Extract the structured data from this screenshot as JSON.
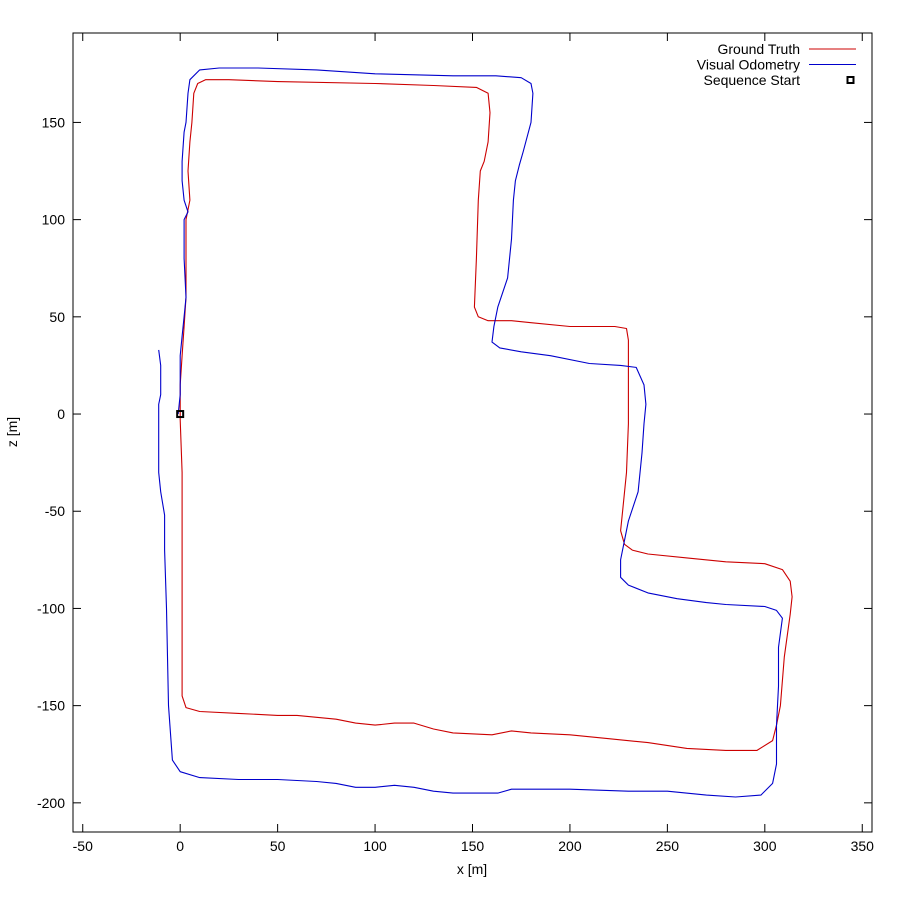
{
  "chart_data": {
    "type": "line",
    "title": "",
    "xlabel": "x [m]",
    "ylabel": "z [m]",
    "xlim": [
      -55,
      355
    ],
    "ylim": [
      -215,
      196
    ],
    "xticks": [
      -50,
      0,
      50,
      100,
      150,
      200,
      250,
      300,
      350
    ],
    "yticks": [
      -200,
      -150,
      -100,
      -50,
      0,
      50,
      100,
      150
    ],
    "grid": false,
    "legend_position": "top-right",
    "series": [
      {
        "name": "Ground Truth",
        "color": "#cc0000",
        "points": [
          [
            0,
            -3
          ],
          [
            1,
            -30
          ],
          [
            1,
            -100
          ],
          [
            1,
            -145
          ],
          [
            3,
            -151
          ],
          [
            10,
            -153
          ],
          [
            30,
            -154
          ],
          [
            50,
            -155
          ],
          [
            60,
            -155
          ],
          [
            80,
            -157
          ],
          [
            90,
            -159
          ],
          [
            100,
            -160
          ],
          [
            110,
            -159
          ],
          [
            120,
            -159
          ],
          [
            130,
            -162
          ],
          [
            140,
            -164
          ],
          [
            160,
            -165
          ],
          [
            170,
            -163
          ],
          [
            180,
            -164
          ],
          [
            200,
            -165
          ],
          [
            220,
            -167
          ],
          [
            240,
            -169
          ],
          [
            260,
            -172
          ],
          [
            280,
            -173
          ],
          [
            296,
            -173
          ],
          [
            304,
            -168
          ],
          [
            306,
            -160
          ],
          [
            308,
            -150
          ],
          [
            310,
            -125
          ],
          [
            313,
            -103
          ],
          [
            314,
            -94
          ],
          [
            313,
            -86
          ],
          [
            309,
            -80
          ],
          [
            300,
            -77
          ],
          [
            280,
            -76
          ],
          [
            260,
            -74
          ],
          [
            240,
            -72
          ],
          [
            232,
            -70
          ],
          [
            228,
            -67
          ],
          [
            226,
            -60
          ],
          [
            227,
            -50
          ],
          [
            229,
            -30
          ],
          [
            230,
            -5
          ],
          [
            230,
            20
          ],
          [
            230,
            38
          ],
          [
            229,
            44
          ],
          [
            223,
            45
          ],
          [
            200,
            45
          ],
          [
            180,
            47
          ],
          [
            170,
            48
          ],
          [
            158,
            48
          ],
          [
            153,
            50
          ],
          [
            151,
            55
          ],
          [
            152,
            80
          ],
          [
            153,
            110
          ],
          [
            154,
            125
          ],
          [
            156,
            130
          ],
          [
            158,
            140
          ],
          [
            159,
            155
          ],
          [
            158,
            165
          ],
          [
            152,
            168
          ],
          [
            130,
            169
          ],
          [
            100,
            170
          ],
          [
            50,
            171
          ],
          [
            25,
            172
          ],
          [
            13,
            172
          ],
          [
            9,
            170
          ],
          [
            7,
            165
          ],
          [
            6,
            150
          ],
          [
            5,
            140
          ],
          [
            4,
            125
          ],
          [
            5,
            110
          ],
          [
            3,
            100
          ],
          [
            3,
            80
          ],
          [
            3,
            60
          ],
          [
            2,
            45
          ],
          [
            1,
            30
          ],
          [
            0,
            15
          ],
          [
            0,
            -3
          ]
        ]
      },
      {
        "name": "Visual Odometry",
        "color": "#0000cc",
        "points": [
          [
            -11,
            33
          ],
          [
            -10,
            25
          ],
          [
            -10,
            10
          ],
          [
            -11,
            5
          ],
          [
            -11,
            -10
          ],
          [
            -11,
            -30
          ],
          [
            -10,
            -40
          ],
          [
            -8,
            -52
          ],
          [
            -8,
            -70
          ],
          [
            -7,
            -100
          ],
          [
            -6,
            -150
          ],
          [
            -4,
            -178
          ],
          [
            0,
            -184
          ],
          [
            10,
            -187
          ],
          [
            30,
            -188
          ],
          [
            50,
            -188
          ],
          [
            70,
            -189
          ],
          [
            80,
            -190
          ],
          [
            90,
            -192
          ],
          [
            100,
            -192
          ],
          [
            110,
            -191
          ],
          [
            120,
            -192
          ],
          [
            130,
            -194
          ],
          [
            140,
            -195
          ],
          [
            163,
            -195
          ],
          [
            170,
            -193
          ],
          [
            180,
            -193
          ],
          [
            200,
            -193
          ],
          [
            230,
            -194
          ],
          [
            250,
            -194
          ],
          [
            270,
            -196
          ],
          [
            285,
            -197
          ],
          [
            298,
            -196
          ],
          [
            304,
            -190
          ],
          [
            306,
            -180
          ],
          [
            306,
            -160
          ],
          [
            307,
            -140
          ],
          [
            307,
            -120
          ],
          [
            309,
            -105
          ],
          [
            306,
            -101
          ],
          [
            300,
            -99
          ],
          [
            280,
            -98
          ],
          [
            270,
            -97
          ],
          [
            255,
            -95
          ],
          [
            240,
            -92
          ],
          [
            230,
            -88
          ],
          [
            226,
            -84
          ],
          [
            226,
            -75
          ],
          [
            228,
            -65
          ],
          [
            230,
            -55
          ],
          [
            235,
            -40
          ],
          [
            237,
            -20
          ],
          [
            238,
            -5
          ],
          [
            239,
            5
          ],
          [
            238,
            15
          ],
          [
            234,
            24
          ],
          [
            226,
            25
          ],
          [
            210,
            26
          ],
          [
            190,
            30
          ],
          [
            175,
            32
          ],
          [
            164,
            34
          ],
          [
            160,
            37
          ],
          [
            161,
            45
          ],
          [
            163,
            55
          ],
          [
            168,
            70
          ],
          [
            170,
            90
          ],
          [
            171,
            110
          ],
          [
            172,
            120
          ],
          [
            174,
            128
          ],
          [
            176,
            135
          ],
          [
            180,
            150
          ],
          [
            181,
            165
          ],
          [
            180,
            170
          ],
          [
            175,
            173
          ],
          [
            162,
            174
          ],
          [
            140,
            174
          ],
          [
            100,
            175
          ],
          [
            70,
            177
          ],
          [
            40,
            178
          ],
          [
            20,
            178
          ],
          [
            10,
            177
          ],
          [
            5,
            172
          ],
          [
            4,
            165
          ],
          [
            3,
            150
          ],
          [
            2,
            145
          ],
          [
            1,
            130
          ],
          [
            1,
            120
          ],
          [
            2,
            110
          ],
          [
            4,
            104
          ],
          [
            2,
            100
          ],
          [
            2,
            80
          ],
          [
            3,
            60
          ],
          [
            2,
            50
          ],
          [
            1,
            40
          ],
          [
            0,
            30
          ],
          [
            0,
            20
          ],
          [
            0,
            10
          ],
          [
            -1,
            0
          ]
        ]
      }
    ],
    "markers": [
      {
        "name": "Sequence Start",
        "shape": "open-square",
        "color": "#000000",
        "point": [
          0,
          0
        ]
      }
    ]
  }
}
